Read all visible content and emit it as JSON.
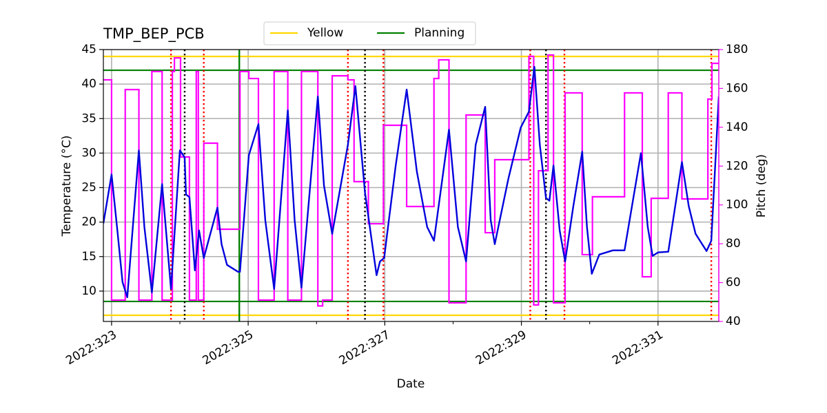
{
  "chart_data": {
    "type": "line",
    "title": "TMP_BEP_PCB",
    "xlabel": "Date",
    "ylabel": "Temperature (°C)",
    "y2label": "Pitch (deg)",
    "y2color": "#ff00ff",
    "xlim": [
      322.88,
      331.89
    ],
    "xticks": [
      {
        "value": 323,
        "label": "2022:323"
      },
      {
        "value": 325,
        "label": "2022:325"
      },
      {
        "value": 327,
        "label": "2022:327"
      },
      {
        "value": 329,
        "label": "2022:329"
      },
      {
        "value": 331,
        "label": "2022:331"
      }
    ],
    "xminorticks": [
      324,
      326,
      328,
      330
    ],
    "ylim": [
      5.6,
      45
    ],
    "yticks": [
      10,
      15,
      20,
      25,
      30,
      35,
      40,
      45
    ],
    "y2lim": [
      40,
      180
    ],
    "y2ticks": [
      40,
      60,
      80,
      100,
      120,
      140,
      160,
      180
    ],
    "grid": true,
    "legend": "top-center",
    "limits": [
      {
        "name": "Yellow",
        "color": "#ffd700",
        "values": [
          6.5,
          44
        ]
      },
      {
        "name": "Planning",
        "color": "#008000",
        "values": [
          8.5,
          42
        ]
      }
    ],
    "events": [
      {
        "color": "#008000",
        "style": "solid",
        "x": [
          324.87
        ]
      },
      {
        "color": "#ff0000",
        "style": "dotted",
        "x": [
          323.87,
          324.35,
          326.46,
          326.98,
          329.13,
          329.63,
          331.78
        ]
      },
      {
        "color": "#000000",
        "style": "dotted",
        "x": [
          324.07,
          326.71,
          329.36
        ]
      }
    ],
    "series": [
      {
        "color": "#ff00ff",
        "axis": "y2",
        "drawstyle": "steps-post",
        "x": [
          322.88,
          323.0,
          323.2,
          323.4,
          323.59,
          323.74,
          323.89,
          323.92,
          324.01,
          324.14,
          324.24,
          324.27,
          324.35,
          324.55,
          324.88,
          325.01,
          325.15,
          325.38,
          325.58,
          325.78,
          326.02,
          326.09,
          326.23,
          326.46,
          326.55,
          326.76,
          326.98,
          327.32,
          327.72,
          327.79,
          327.94,
          328.19,
          328.47,
          328.61,
          329.11,
          329.18,
          329.25,
          329.39,
          329.47,
          329.64,
          329.89,
          330.04,
          330.51,
          330.77,
          330.9,
          331.15,
          331.35,
          331.73,
          331.79
        ],
        "values": [
          164.4,
          51,
          159.4,
          51,
          168.7,
          51,
          168.7,
          175.7,
          124.7,
          51,
          168.7,
          51,
          131.8,
          87.5,
          168.7,
          165.1,
          51,
          168.7,
          51,
          168.7,
          48,
          51,
          166.5,
          164.4,
          112,
          90.3,
          141,
          99.2,
          165.1,
          174.7,
          49.6,
          146.3,
          85.7,
          123.3,
          176.5,
          48.5,
          117.6,
          177.2,
          49.6,
          157.7,
          74.4,
          104.2,
          157.7,
          63,
          103.4,
          157.7,
          103.1,
          154.5,
          172.9
        ]
      },
      {
        "color": "#0000dd",
        "axis": "y",
        "x": [
          322.88,
          323.0,
          323.08,
          323.16,
          323.23,
          323.4,
          323.48,
          323.59,
          323.74,
          323.87,
          324.0,
          324.07,
          324.09,
          324.14,
          324.22,
          324.28,
          324.35,
          324.55,
          324.61,
          324.69,
          324.85,
          324.88,
          325.01,
          325.15,
          325.25,
          325.38,
          325.58,
          325.68,
          325.78,
          326.02,
          326.11,
          326.23,
          326.46,
          326.57,
          326.71,
          326.88,
          326.93,
          326.99,
          327.16,
          327.32,
          327.47,
          327.62,
          327.72,
          327.94,
          328.07,
          328.19,
          328.33,
          328.47,
          328.55,
          328.61,
          328.81,
          328.99,
          329.11,
          329.19,
          329.27,
          329.36,
          329.41,
          329.47,
          329.56,
          329.64,
          329.76,
          329.89,
          329.96,
          330.03,
          330.14,
          330.34,
          330.51,
          330.75,
          330.85,
          330.92,
          331.0,
          331.15,
          331.35,
          331.45,
          331.55,
          331.71,
          331.78,
          331.89
        ],
        "values": [
          19.8,
          26.9,
          19.3,
          11.3,
          9.1,
          30.4,
          19.3,
          9.8,
          25.5,
          10.3,
          30.4,
          29.4,
          24.0,
          23.6,
          13.0,
          18.8,
          14.8,
          22.1,
          16.8,
          13.8,
          12.8,
          12.8,
          29.7,
          34.2,
          20.3,
          10.3,
          36.2,
          20.3,
          10.5,
          38.2,
          25.3,
          18.3,
          31.2,
          39.7,
          24.3,
          12.3,
          14.3,
          14.8,
          28.2,
          39.2,
          27.3,
          19.3,
          17.3,
          33.4,
          19.3,
          14.3,
          31.2,
          36.7,
          20.3,
          16.8,
          26.3,
          33.7,
          36.0,
          42.5,
          31.2,
          23.5,
          23.1,
          28.2,
          18.8,
          14.3,
          22.3,
          30.2,
          19.3,
          12.5,
          15.3,
          15.9,
          15.9,
          30.0,
          19.3,
          15.1,
          15.6,
          15.7,
          28.7,
          22.3,
          18.3,
          15.8,
          17.3,
          38.2
        ]
      }
    ]
  }
}
